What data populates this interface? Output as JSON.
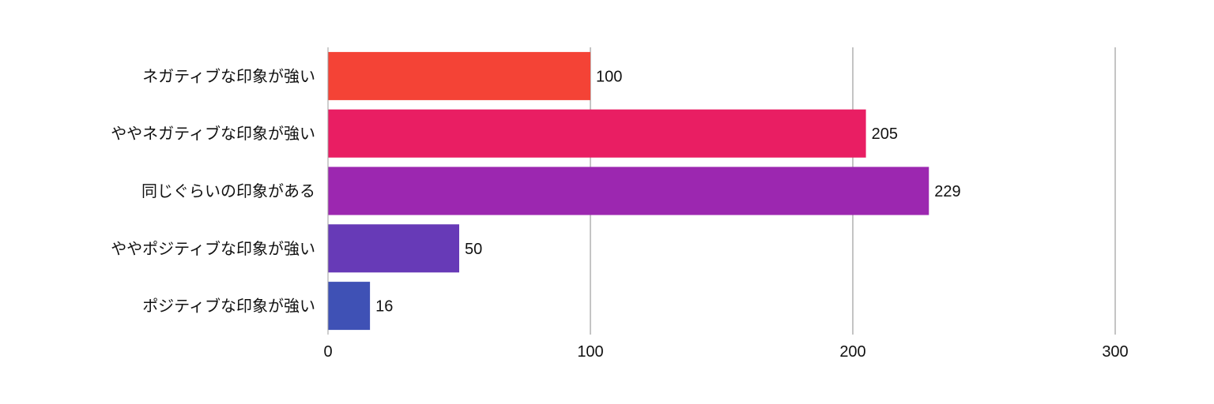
{
  "chart_data": {
    "type": "bar",
    "orientation": "horizontal",
    "title": "",
    "xlabel": "",
    "ylabel": "",
    "categories": [
      "ネガティブな印象が強い",
      "ややネガティブな印象が強い",
      "同じぐらいの印象がある",
      "ややポジティブな印象が強い",
      "ポジティブな印象が強い"
    ],
    "values": [
      100,
      205,
      229,
      50,
      16
    ],
    "bar_colors": [
      "#f44336",
      "#e91e63",
      "#9c27b0",
      "#673ab7",
      "#3f51b5"
    ],
    "xlim": [
      0,
      300
    ],
    "x_ticks": [
      0,
      100,
      200,
      300
    ],
    "x_tick_labels": [
      "0",
      "100",
      "200",
      "300"
    ],
    "grid": true,
    "data_labels": [
      "100",
      "205",
      "229",
      "50",
      "16"
    ]
  }
}
